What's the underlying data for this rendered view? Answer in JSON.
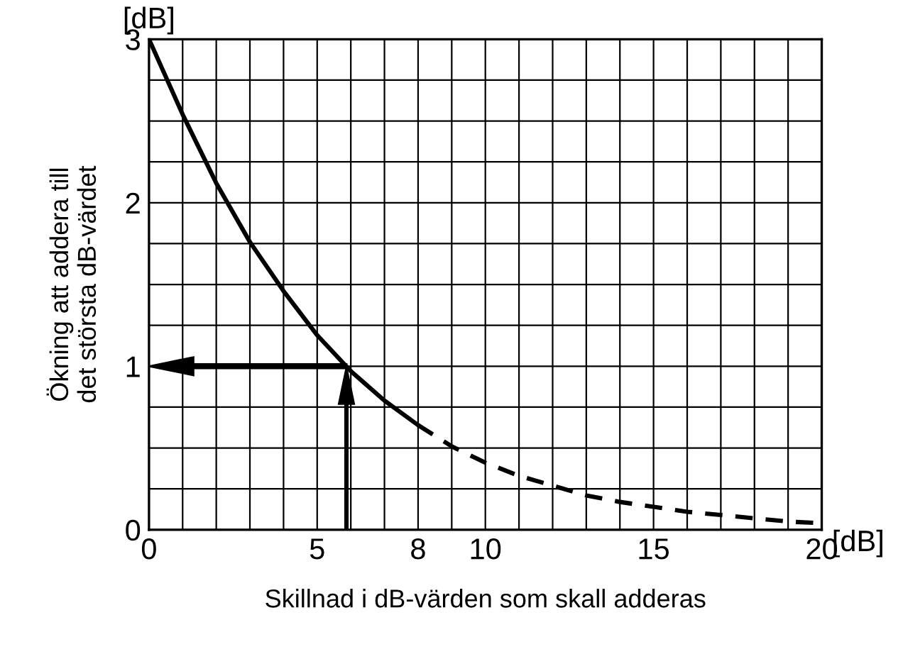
{
  "chart_data": {
    "type": "line",
    "xlabel": "Skillnad i dB-värden som skall adderas",
    "ylabel": "Ökning att addera till\ndet största dB-värdet",
    "series": [
      {
        "x": [
          0,
          1,
          2,
          3,
          4,
          5,
          6,
          7,
          8
        ],
        "values": [
          3.0,
          2.54,
          2.12,
          1.76,
          1.46,
          1.19,
          0.97,
          0.79,
          0.64
        ],
        "color": "#000000",
        "line_style": "solid"
      },
      {
        "x": [
          8,
          9,
          10,
          11,
          12,
          13,
          14,
          15,
          16,
          17,
          18,
          19,
          20
        ],
        "values": [
          0.64,
          0.51,
          0.41,
          0.33,
          0.27,
          0.21,
          0.17,
          0.14,
          0.11,
          0.09,
          0.07,
          0.05,
          0.04
        ],
        "color": "#000000",
        "line_style": "dashed"
      }
    ],
    "xlim": [
      0,
      20
    ],
    "ylim": [
      0,
      3
    ],
    "xticks": [
      0,
      {
        "value": 1,
        "label": null
      },
      {
        "value": 2,
        "label": null
      },
      {
        "value": 3,
        "label": null
      },
      {
        "value": 4,
        "label": null
      },
      5,
      {
        "value": 6,
        "label": null
      },
      {
        "value": 7,
        "label": null
      },
      8,
      {
        "value": 9,
        "label": null
      },
      10,
      {
        "value": 11,
        "label": null
      },
      {
        "value": 12,
        "label": null
      },
      {
        "value": 13,
        "label": null
      },
      {
        "value": 14,
        "label": null
      },
      15,
      {
        "value": 16,
        "label": null
      },
      {
        "value": 17,
        "label": null
      },
      {
        "value": 18,
        "label": null
      },
      {
        "value": 19,
        "label": null
      },
      20
    ],
    "yticks": [
      0,
      {
        "value": 0.25,
        "label": null
      },
      {
        "value": 0.5,
        "label": null
      },
      {
        "value": 0.75,
        "label": null
      },
      1,
      {
        "value": 1.25,
        "label": null
      },
      {
        "value": 1.5,
        "label": null
      },
      {
        "value": 1.75,
        "label": null
      },
      2,
      {
        "value": 2.25,
        "label": null
      },
      {
        "value": 2.5,
        "label": null
      },
      {
        "value": 2.75,
        "label": null
      },
      3
    ],
    "grid": true,
    "marker": "none",
    "annotations": [
      "[dB]",
      "[dB]"
    ]
  }
}
